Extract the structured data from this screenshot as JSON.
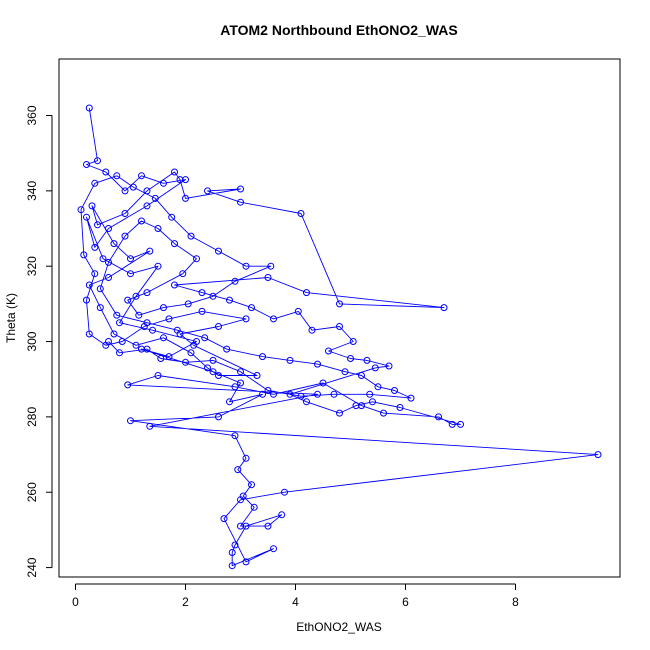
{
  "chart_data": {
    "type": "line",
    "title": "ATOM2 Northbound EthONO2_WAS",
    "xlabel": "EthONO2_WAS",
    "ylabel": "Theta (K)",
    "xlim": [
      -0.3,
      9.9
    ],
    "ylim": [
      237.5,
      375
    ],
    "x_ticks": [
      0,
      2,
      4,
      6,
      8
    ],
    "y_ticks": [
      240,
      260,
      280,
      300,
      320,
      340,
      360
    ],
    "grid": false,
    "legend": "none",
    "series_color": "#0000ff",
    "series": [
      {
        "marker": "open-circle",
        "points": [
          [
            0.25,
            362
          ],
          [
            0.4,
            348
          ],
          [
            0.2,
            347
          ],
          [
            0.55,
            345
          ],
          [
            0.9,
            340
          ],
          [
            1.2,
            344
          ],
          [
            1.6,
            342
          ],
          [
            2.0,
            343
          ],
          [
            1.3,
            336
          ],
          [
            0.6,
            330
          ],
          [
            0.35,
            325
          ],
          [
            0.2,
            333
          ],
          [
            0.5,
            322
          ],
          [
            1.0,
            318
          ],
          [
            1.5,
            320
          ],
          [
            1.1,
            312
          ],
          [
            0.8,
            305
          ],
          [
            1.4,
            303
          ],
          [
            2.2,
            300
          ],
          [
            1.7,
            296
          ],
          [
            1.2,
            298
          ],
          [
            2.5,
            292
          ],
          [
            3.0,
            289
          ],
          [
            2.8,
            284
          ],
          [
            3.4,
            286
          ],
          [
            2.6,
            280
          ],
          [
            1.0,
            279
          ],
          [
            2.9,
            275
          ],
          [
            3.1,
            269
          ],
          [
            2.95,
            266
          ],
          [
            3.2,
            262
          ],
          [
            3.05,
            259
          ],
          [
            3.25,
            256
          ],
          [
            3.0,
            251
          ],
          [
            3.5,
            251
          ],
          [
            3.75,
            254
          ],
          [
            3.1,
            251
          ],
          [
            2.9,
            246
          ],
          [
            2.85,
            244
          ],
          [
            2.85,
            240.5
          ],
          [
            3.6,
            245
          ],
          [
            3.1,
            241.5
          ],
          [
            2.7,
            253
          ],
          [
            3.0,
            258
          ],
          [
            3.8,
            260
          ],
          [
            9.5,
            270
          ],
          [
            1.35,
            277.5
          ],
          [
            4.4,
            286
          ],
          [
            0.95,
            288.5
          ],
          [
            1.5,
            291
          ],
          [
            2.9,
            288
          ],
          [
            3.6,
            286
          ],
          [
            4.5,
            289
          ],
          [
            5.2,
            283
          ],
          [
            5.6,
            281
          ],
          [
            6.6,
            280
          ],
          [
            6.85,
            278
          ],
          [
            7.0,
            278
          ],
          [
            5.9,
            282.5
          ],
          [
            5.4,
            284
          ],
          [
            5.1,
            283
          ],
          [
            4.8,
            281
          ],
          [
            4.2,
            284
          ],
          [
            3.9,
            286
          ],
          [
            5.45,
            293
          ],
          [
            5.7,
            293.5
          ],
          [
            5.3,
            295
          ],
          [
            5.0,
            295.5
          ],
          [
            4.6,
            297.5
          ],
          [
            5.05,
            300
          ],
          [
            4.8,
            304
          ],
          [
            4.3,
            303
          ],
          [
            4.05,
            308
          ],
          [
            3.6,
            306
          ],
          [
            3.2,
            309
          ],
          [
            2.8,
            311
          ],
          [
            2.3,
            313
          ],
          [
            1.8,
            315
          ],
          [
            3.5,
            317
          ],
          [
            4.2,
            313
          ],
          [
            6.7,
            309
          ],
          [
            4.8,
            310
          ],
          [
            4.1,
            334
          ],
          [
            3.0,
            337
          ],
          [
            2.4,
            340
          ],
          [
            3.0,
            340.5
          ],
          [
            2.0,
            338
          ],
          [
            1.9,
            343
          ],
          [
            1.8,
            345
          ],
          [
            1.3,
            340
          ],
          [
            0.9,
            334
          ],
          [
            0.4,
            331
          ],
          [
            0.3,
            336
          ],
          [
            0.7,
            326
          ],
          [
            1.0,
            322
          ],
          [
            1.35,
            324
          ],
          [
            0.6,
            317
          ],
          [
            0.25,
            315
          ],
          [
            0.45,
            309
          ],
          [
            0.7,
            302
          ],
          [
            1.1,
            299
          ],
          [
            1.6,
            301
          ],
          [
            2.1,
            297
          ],
          [
            2.4,
            293
          ],
          [
            2.6,
            291
          ],
          [
            3.3,
            291
          ],
          [
            2.15,
            299
          ],
          [
            1.9,
            302
          ],
          [
            2.6,
            304
          ],
          [
            3.1,
            306
          ],
          [
            2.3,
            308
          ],
          [
            1.7,
            306
          ],
          [
            1.25,
            304
          ],
          [
            0.85,
            300
          ],
          [
            0.55,
            299
          ],
          [
            0.25,
            302
          ],
          [
            0.2,
            311
          ],
          [
            0.35,
            318
          ],
          [
            0.15,
            323
          ],
          [
            0.1,
            335
          ],
          [
            0.35,
            342
          ],
          [
            0.75,
            344
          ],
          [
            1.05,
            341
          ],
          [
            1.45,
            338
          ],
          [
            1.75,
            333
          ],
          [
            2.1,
            328
          ],
          [
            2.6,
            324
          ],
          [
            3.1,
            320
          ],
          [
            3.55,
            320
          ],
          [
            2.9,
            316
          ],
          [
            2.5,
            312
          ],
          [
            2.05,
            310
          ],
          [
            1.6,
            309
          ],
          [
            1.15,
            307
          ],
          [
            0.95,
            311
          ],
          [
            1.3,
            313
          ],
          [
            1.95,
            318
          ],
          [
            2.2,
            322
          ],
          [
            1.8,
            326
          ],
          [
            1.5,
            330
          ],
          [
            1.2,
            332
          ],
          [
            0.9,
            328
          ],
          [
            0.6,
            321
          ],
          [
            0.45,
            314
          ],
          [
            0.75,
            307
          ],
          [
            1.3,
            305
          ],
          [
            1.85,
            303
          ],
          [
            2.35,
            301
          ],
          [
            2.75,
            298
          ],
          [
            3.4,
            296
          ],
          [
            3.9,
            295
          ],
          [
            4.4,
            294
          ],
          [
            4.9,
            292
          ],
          [
            5.2,
            291
          ],
          [
            5.5,
            288
          ],
          [
            5.8,
            287
          ],
          [
            6.1,
            285
          ],
          [
            5.35,
            286
          ],
          [
            4.7,
            286
          ],
          [
            4.1,
            285.5
          ],
          [
            3.5,
            287
          ],
          [
            3.0,
            292
          ],
          [
            2.5,
            295
          ],
          [
            2.0,
            294.5
          ],
          [
            1.55,
            295.5
          ],
          [
            1.3,
            298
          ],
          [
            0.8,
            297
          ],
          [
            0.6,
            300
          ]
        ]
      }
    ]
  }
}
